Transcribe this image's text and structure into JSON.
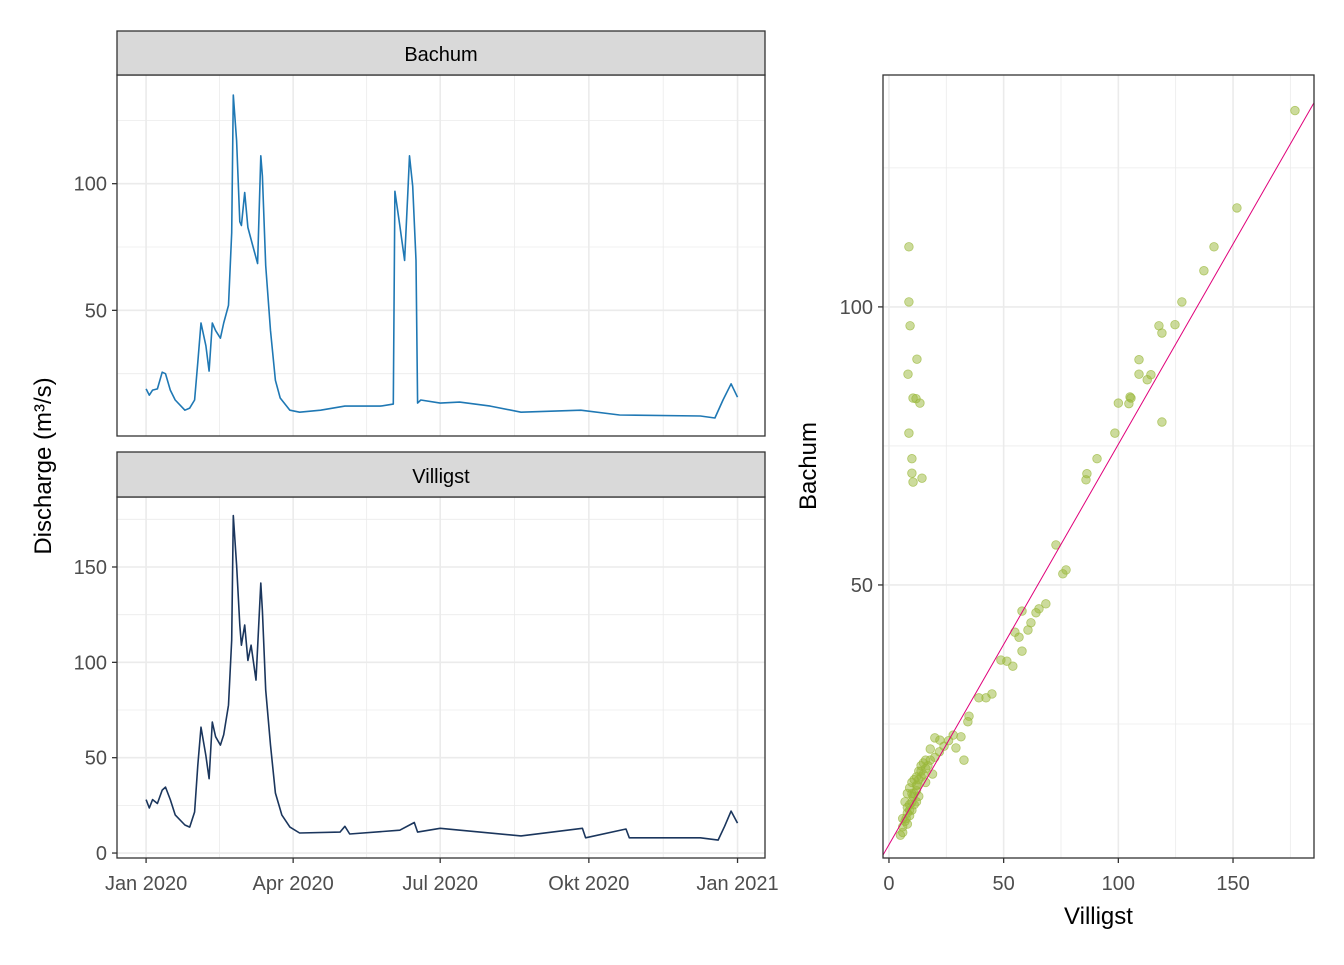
{
  "chart_data": [
    {
      "type": "line",
      "facet_title": "Bachum",
      "ylabel": "Discharge (m³/s)",
      "color": "#1f78b4",
      "xlim": [
        "2019-12-14",
        "2021-01-18"
      ],
      "ylim": [
        0.4,
        142.9
      ],
      "yticks": [
        50,
        100
      ],
      "yminor": [
        25,
        75,
        125
      ],
      "x": [
        "2020-01-01",
        "2020-01-03",
        "2020-01-05",
        "2020-01-08",
        "2020-01-11",
        "2020-01-13",
        "2020-01-16",
        "2020-01-19",
        "2020-01-25",
        "2020-01-28",
        "2020-01-31",
        "2020-02-02",
        "2020-02-04",
        "2020-02-07",
        "2020-02-09",
        "2020-02-11",
        "2020-02-13",
        "2020-02-16",
        "2020-02-18",
        "2020-02-21",
        "2020-02-23",
        "2020-02-24",
        "2020-02-26",
        "2020-02-28",
        "2020-02-29",
        "2020-03-02",
        "2020-03-04",
        "2020-03-07",
        "2020-03-10",
        "2020-03-12",
        "2020-03-13",
        "2020-03-15",
        "2020-03-18",
        "2020-03-21",
        "2020-03-24",
        "2020-03-30",
        "2020-04-05",
        "2020-04-18",
        "2020-05-03",
        "2020-05-25",
        "2020-06-02",
        "2020-06-03",
        "2020-06-06",
        "2020-06-09",
        "2020-06-11",
        "2020-06-12",
        "2020-06-14",
        "2020-06-16",
        "2020-06-17",
        "2020-06-19",
        "2020-07-01",
        "2020-07-13",
        "2020-08-01",
        "2020-08-20",
        "2020-09-26",
        "2020-10-20",
        "2020-12-09",
        "2020-12-18",
        "2020-12-23",
        "2020-12-28",
        "2021-01-01"
      ],
      "values": [
        19,
        16.5,
        18.5,
        19,
        25.6,
        25,
        18.5,
        14.6,
        10.6,
        11.4,
        14.6,
        29.5,
        45,
        36,
        26,
        45,
        42,
        39,
        45,
        52,
        80.7,
        135,
        117,
        85,
        83.5,
        96.5,
        82.7,
        75.6,
        68.5,
        111,
        103,
        67.7,
        42,
        22.4,
        15.4,
        10.6,
        9.8,
        10.6,
        12.2,
        12.2,
        13,
        97,
        83.5,
        69.7,
        97,
        111,
        99,
        69.7,
        13.4,
        14.6,
        13.4,
        13.8,
        12.2,
        9.8,
        10.6,
        8.7,
        8.3,
        7.5,
        14.6,
        21,
        15.7
      ]
    },
    {
      "type": "line",
      "facet_title": "Villigst",
      "color": "#1b365d",
      "xlim": [
        "2019-12-14",
        "2021-01-18"
      ],
      "ylim": [
        -2.6,
        186.7
      ],
      "yticks": [
        0,
        50,
        100,
        150
      ],
      "yminor": [
        25,
        75,
        125,
        175
      ],
      "xticks": [
        "2020-01-01",
        "2020-04-01",
        "2020-07-01",
        "2020-10-01",
        "2021-01-01"
      ],
      "xtick_labels": [
        "Jan 2020",
        "Apr 2020",
        "Jul 2020",
        "Okt 2020",
        "Jan 2021"
      ],
      "x": [
        "2020-01-01",
        "2020-01-03",
        "2020-01-05",
        "2020-01-08",
        "2020-01-11",
        "2020-01-13",
        "2020-01-16",
        "2020-01-19",
        "2020-01-25",
        "2020-01-28",
        "2020-01-31",
        "2020-02-02",
        "2020-02-04",
        "2020-02-07",
        "2020-02-09",
        "2020-02-11",
        "2020-02-13",
        "2020-02-16",
        "2020-02-18",
        "2020-02-21",
        "2020-02-23",
        "2020-02-24",
        "2020-02-26",
        "2020-02-28",
        "2020-02-29",
        "2020-03-02",
        "2020-03-04",
        "2020-03-06",
        "2020-03-09",
        "2020-03-12",
        "2020-03-13",
        "2020-03-15",
        "2020-03-18",
        "2020-03-21",
        "2020-03-25",
        "2020-03-30",
        "2020-04-05",
        "2020-04-30",
        "2020-05-03",
        "2020-05-06",
        "2020-06-06",
        "2020-06-15",
        "2020-06-17",
        "2020-07-01",
        "2020-08-20",
        "2020-09-27",
        "2020-09-29",
        "2020-10-24",
        "2020-10-26",
        "2020-12-09",
        "2020-12-20",
        "2020-12-24",
        "2020-12-28",
        "2021-01-01"
      ],
      "values": [
        28,
        23.6,
        28,
        26,
        33,
        34.6,
        28,
        20,
        14.7,
        13.6,
        21.5,
        46,
        66,
        51,
        39,
        68.7,
        61,
        56.6,
        62,
        77.6,
        111.7,
        177,
        151,
        119.6,
        109,
        119.6,
        101,
        109,
        90.7,
        141.6,
        127,
        85.5,
        56.6,
        31.5,
        20,
        13.6,
        10.5,
        11,
        14,
        10,
        12,
        16,
        11,
        13,
        9,
        13,
        8,
        12.6,
        8,
        8,
        6.8,
        14,
        22,
        15.7
      ]
    },
    {
      "type": "scatter",
      "xlabel": "Villigst",
      "ylabel": "Bachum",
      "color": "#9ab83a",
      "line_color": "#e0007a",
      "abline": {
        "slope": 0.72,
        "intercept": 3.3
      },
      "xlim": [
        -2.6,
        185.3
      ],
      "ylim": [
        0.9,
        141.7
      ],
      "xticks": [
        0,
        50,
        100,
        150
      ],
      "xminor": [
        25,
        75,
        125,
        175
      ],
      "yticks": [
        50,
        100
      ],
      "yminor": [
        25,
        75,
        125
      ],
      "points": [
        [
          177,
          135.3
        ],
        [
          151.7,
          117.8
        ],
        [
          141.7,
          110.8
        ],
        [
          137.3,
          106.5
        ],
        [
          127.7,
          100.9
        ],
        [
          124.7,
          96.8
        ],
        [
          117.7,
          96.6
        ],
        [
          119,
          95.3
        ],
        [
          109,
          90.5
        ],
        [
          114.2,
          87.8
        ],
        [
          109,
          87.9
        ],
        [
          112.6,
          86.9
        ],
        [
          105.1,
          83.8
        ],
        [
          104.6,
          82.6
        ],
        [
          100,
          82.7
        ],
        [
          105.5,
          83.6
        ],
        [
          119,
          79.3
        ],
        [
          98.5,
          77.3
        ],
        [
          90.7,
          72.7
        ],
        [
          86.3,
          70
        ],
        [
          85.9,
          68.9
        ],
        [
          72.8,
          57.2
        ],
        [
          77.2,
          52.7
        ],
        [
          75.8,
          52
        ],
        [
          68.4,
          46.6
        ],
        [
          65.4,
          45.7
        ],
        [
          64.1,
          45
        ],
        [
          58,
          45.3
        ],
        [
          61.9,
          43.2
        ],
        [
          54.9,
          41.5
        ],
        [
          56.7,
          40.6
        ],
        [
          60.6,
          41.9
        ],
        [
          58,
          38.1
        ],
        [
          48.8,
          36.5
        ],
        [
          51.4,
          36.3
        ],
        [
          54,
          35.4
        ],
        [
          44.9,
          30.4
        ],
        [
          42.3,
          29.7
        ],
        [
          39.2,
          29.7
        ],
        [
          34.9,
          26.4
        ],
        [
          34.4,
          25.4
        ],
        [
          31.4,
          22.7
        ],
        [
          32.7,
          18.5
        ],
        [
          29.2,
          20.7
        ],
        [
          22.2,
          22.1
        ],
        [
          8.7,
          110.8
        ],
        [
          8.7,
          100.9
        ],
        [
          9.2,
          96.6
        ],
        [
          12.2,
          90.6
        ],
        [
          8.3,
          87.9
        ],
        [
          10.5,
          83.6
        ],
        [
          11.8,
          83.5
        ],
        [
          13.5,
          82.7
        ],
        [
          8.7,
          77.3
        ],
        [
          10,
          72.7
        ],
        [
          10,
          70.1
        ],
        [
          14.4,
          69.2
        ],
        [
          10.5,
          68.5
        ],
        [
          5,
          5
        ],
        [
          6,
          6.5
        ],
        [
          7,
          7.5
        ],
        [
          7.5,
          8
        ],
        [
          8,
          9
        ],
        [
          9,
          9.5
        ],
        [
          9,
          10.5
        ],
        [
          10,
          11
        ],
        [
          10.5,
          12
        ],
        [
          11,
          12.5
        ],
        [
          12,
          13
        ],
        [
          12.5,
          14
        ],
        [
          13,
          15
        ],
        [
          14,
          15.5
        ],
        [
          15,
          16
        ],
        [
          16,
          17
        ],
        [
          17,
          17.5
        ],
        [
          18,
          18.5
        ],
        [
          20,
          19
        ],
        [
          22,
          20
        ],
        [
          24,
          21
        ],
        [
          26,
          22
        ],
        [
          28,
          23
        ],
        [
          7,
          11
        ],
        [
          8,
          12.5
        ],
        [
          9,
          13.5
        ],
        [
          10,
          14.5
        ],
        [
          11,
          15
        ],
        [
          12,
          15.5
        ],
        [
          13,
          16.5
        ],
        [
          14,
          17.5
        ],
        [
          15,
          18
        ],
        [
          16,
          18.5
        ],
        [
          18,
          20.5
        ],
        [
          20,
          22.5
        ],
        [
          6,
          8
        ],
        [
          8,
          10
        ],
        [
          10,
          12.5
        ],
        [
          12,
          14
        ],
        [
          14,
          16.5
        ],
        [
          11,
          10.5
        ],
        [
          13,
          12
        ],
        [
          16,
          14.5
        ],
        [
          19,
          16
        ],
        [
          6,
          5.5
        ],
        [
          8,
          7
        ],
        [
          9,
          8.5
        ],
        [
          10,
          9.5
        ],
        [
          12,
          11
        ]
      ]
    }
  ]
}
